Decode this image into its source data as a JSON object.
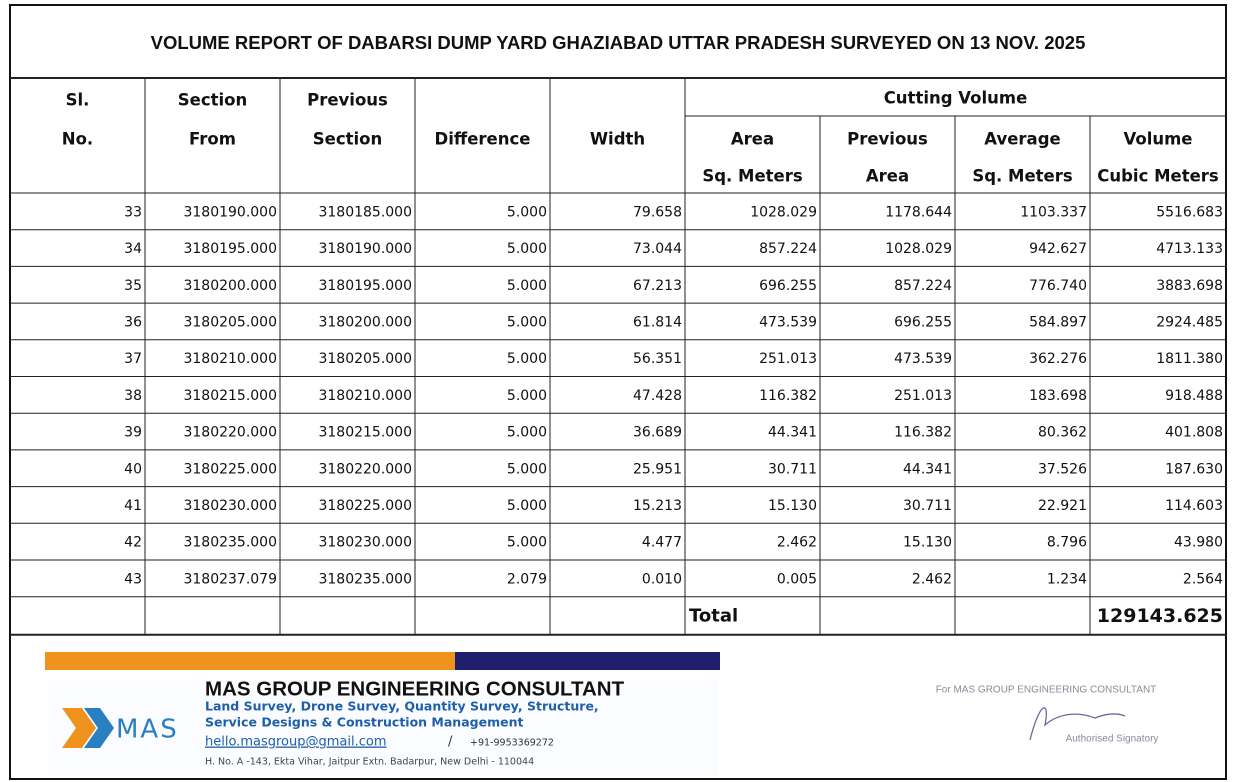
{
  "title": "VOLUME REPORT OF DABARSI DUMP YARD GHAZIABAD UTTAR PRADESH SURVEYED ON 13 NOV. 2025",
  "table": {
    "header": [
      [
        "Sl.",
        "No."
      ],
      [
        "Section",
        "From"
      ],
      [
        "Previous",
        "Section"
      ],
      [
        "Difference"
      ],
      [
        "Width"
      ],
      [
        "Area",
        "Sq. Meters"
      ],
      [
        "Previous",
        "Area"
      ],
      [
        "Average",
        "Sq. Meters"
      ],
      [
        "Volume",
        "Cubic Meters"
      ]
    ],
    "group_header": "Cutting Volume",
    "rows": [
      [
        "33",
        "3180190.000",
        "3180185.000",
        "5.000",
        "79.658",
        "1028.029",
        "1178.644",
        "1103.337",
        "5516.683"
      ],
      [
        "34",
        "3180195.000",
        "3180190.000",
        "5.000",
        "73.044",
        "857.224",
        "1028.029",
        "942.627",
        "4713.133"
      ],
      [
        "35",
        "3180200.000",
        "3180195.000",
        "5.000",
        "67.213",
        "696.255",
        "857.224",
        "776.740",
        "3883.698"
      ],
      [
        "36",
        "3180205.000",
        "3180200.000",
        "5.000",
        "61.814",
        "473.539",
        "696.255",
        "584.897",
        "2924.485"
      ],
      [
        "37",
        "3180210.000",
        "3180205.000",
        "5.000",
        "56.351",
        "251.013",
        "473.539",
        "362.276",
        "1811.380"
      ],
      [
        "38",
        "3180215.000",
        "3180210.000",
        "5.000",
        "47.428",
        "116.382",
        "251.013",
        "183.698",
        "918.488"
      ],
      [
        "39",
        "3180220.000",
        "3180215.000",
        "5.000",
        "36.689",
        "44.341",
        "116.382",
        "80.362",
        "401.808"
      ],
      [
        "40",
        "3180225.000",
        "3180220.000",
        "5.000",
        "25.951",
        "30.711",
        "44.341",
        "37.526",
        "187.630"
      ],
      [
        "41",
        "3180230.000",
        "3180225.000",
        "5.000",
        "15.213",
        "15.130",
        "30.711",
        "22.921",
        "114.603"
      ],
      [
        "42",
        "3180235.000",
        "3180230.000",
        "5.000",
        "4.477",
        "2.462",
        "15.130",
        "8.796",
        "43.980"
      ],
      [
        "43",
        "3180237.079",
        "3180235.000",
        "2.079",
        "0.010",
        "0.005",
        "2.462",
        "1.234",
        "2.564"
      ]
    ],
    "total_label": "Total",
    "total_value": "129143.625"
  },
  "footer": {
    "logo": "MAS",
    "company": "MAS GROUP ENGINEERING CONSULTANT",
    "services": [
      "Land Survey, Drone Survey, Quantity Survey, Structure,",
      "Service Designs & Construction Management"
    ],
    "email": "hello.masgroup@gmail.com",
    "separator": "/",
    "phone": "+91-9953369272",
    "address": "H. No. A -143, Ekta Vihar, Jaitpur Extn. Badarpur, New Delhi - 110044",
    "signature_for": "For MAS GROUP ENGINEERING CONSULTANT",
    "signatory": "Authorised Signatory"
  }
}
